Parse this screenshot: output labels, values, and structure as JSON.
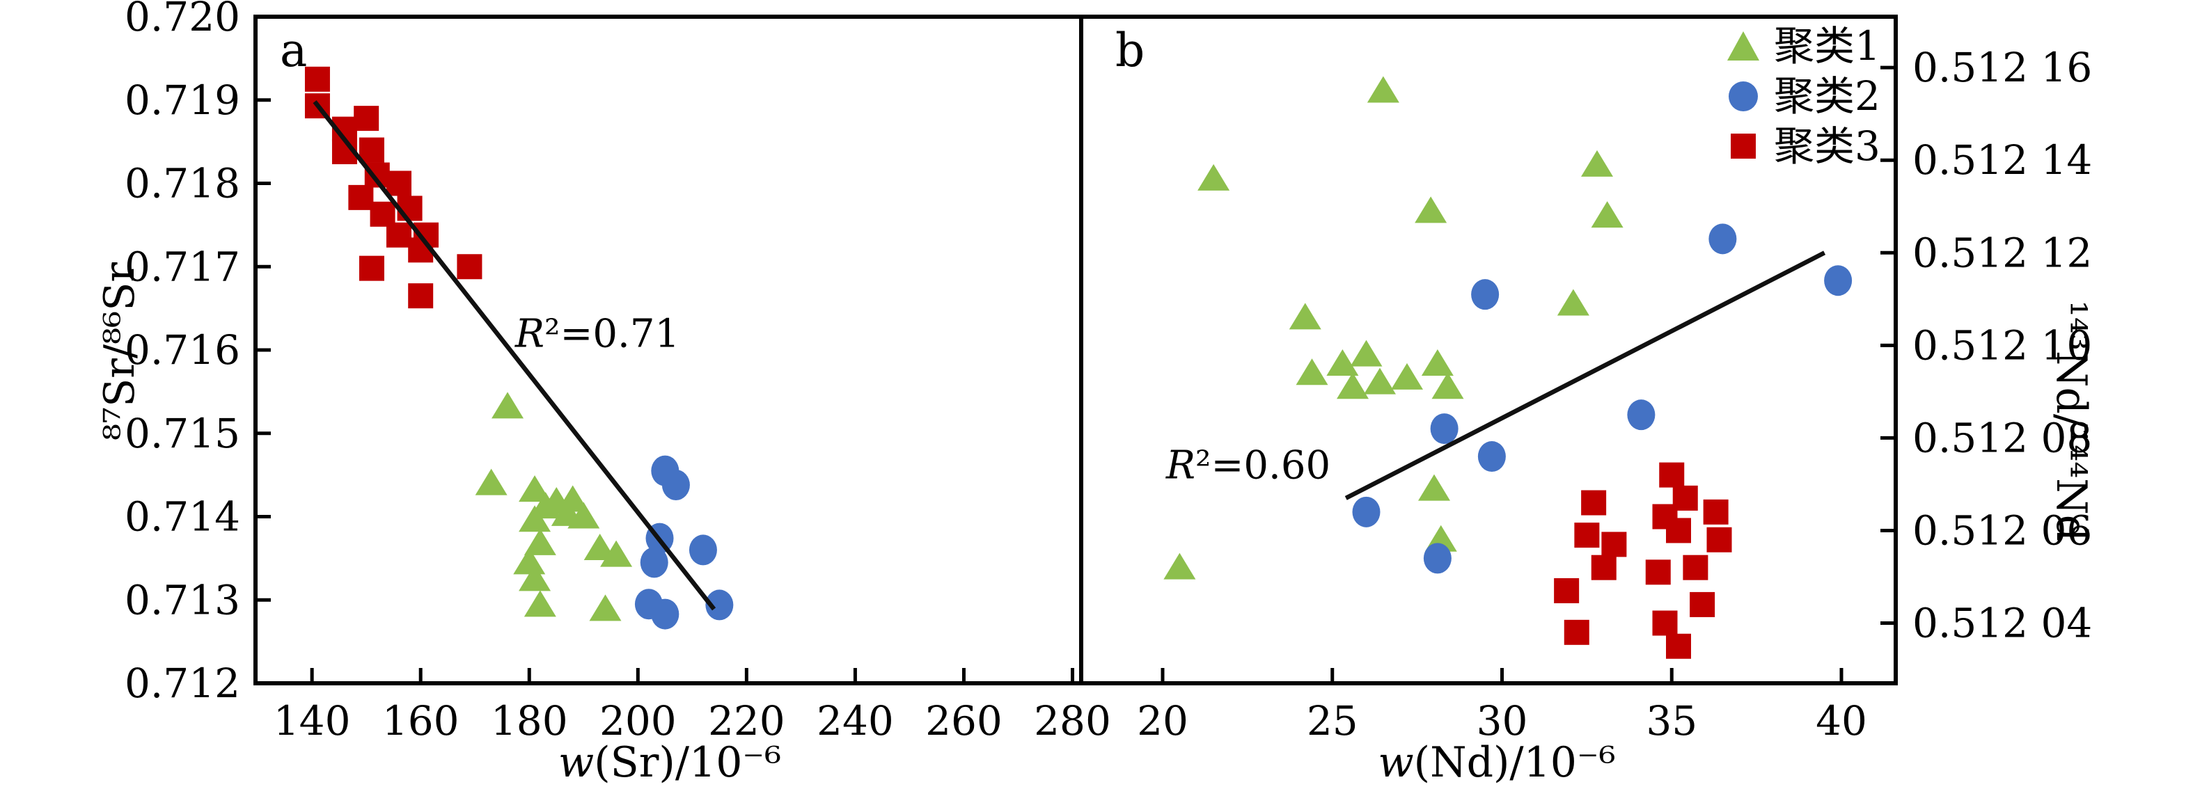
{
  "figure": {
    "background": "#ffffff",
    "panels": [
      {
        "letter": "a",
        "r2_var": "R",
        "r2_rest": "²=0.71",
        "xlabel_var": "w",
        "xlabel_rest": "(Sr)/10⁻⁶",
        "ylabel": "⁸⁷Sr/⁸⁶Sr"
      },
      {
        "letter": "b",
        "r2_var": "R",
        "r2_rest": "²=0.60",
        "xlabel_var": "w",
        "xlabel_rest": "(Nd)/10⁻⁶",
        "ylabel": "¹⁴³Nd/¹⁴⁴Nd"
      }
    ],
    "legend": {
      "items": [
        {
          "label": "聚类1",
          "marker": "triangle",
          "color": "#8DBF4D"
        },
        {
          "label": "聚类2",
          "marker": "circle",
          "color": "#4472C4"
        },
        {
          "label": "聚类3",
          "marker": "square",
          "color": "#C00000"
        }
      ]
    },
    "colors": {
      "axis": "#000000",
      "line": "#111111"
    }
  },
  "chart_data": [
    {
      "type": "scatter",
      "panel": "a",
      "xlabel": "w(Sr)/10⁻⁶",
      "ylabel": "⁸⁷Sr/⁸⁶Sr",
      "xlim": [
        129.6,
        281.6
      ],
      "ylim": [
        0.712,
        0.72
      ],
      "xticks": [
        140,
        160,
        180,
        200,
        220,
        240,
        260,
        280
      ],
      "yticks": [
        0.712,
        0.713,
        0.714,
        0.715,
        0.716,
        0.717,
        0.718,
        0.719,
        0.72
      ],
      "ytick_labels": [
        "0.712",
        "0.713",
        "0.714",
        "0.715",
        "0.716",
        "0.717",
        "0.718",
        "0.719",
        "0.720"
      ],
      "grid": false,
      "series": [
        {
          "name": "聚类1",
          "marker": "triangle",
          "color": "#8DBF4D",
          "points": [
            [
              176,
              0.71532
            ],
            [
              173,
              0.7144
            ],
            [
              181,
              0.71432
            ],
            [
              183,
              0.71412
            ],
            [
              185,
              0.71418
            ],
            [
              187,
              0.71403
            ],
            [
              181,
              0.71396
            ],
            [
              188,
              0.7142
            ],
            [
              190,
              0.714
            ],
            [
              182,
              0.71368
            ],
            [
              180,
              0.71345
            ],
            [
              181,
              0.71325
            ],
            [
              182,
              0.71294
            ],
            [
              193,
              0.71362
            ],
            [
              196,
              0.71354
            ],
            [
              194,
              0.71289
            ]
          ]
        },
        {
          "name": "聚类2",
          "marker": "circle",
          "color": "#4472C4",
          "points": [
            [
              205,
              0.71455
            ],
            [
              207,
              0.71438
            ],
            [
              204,
              0.71374
            ],
            [
              203,
              0.71345
            ],
            [
              212,
              0.7136
            ],
            [
              202,
              0.71295
            ],
            [
              205,
              0.71283
            ],
            [
              215,
              0.71294
            ]
          ]
        },
        {
          "name": "聚类3",
          "marker": "square",
          "color": "#C00000",
          "points": [
            [
              141,
              0.71925
            ],
            [
              141,
              0.71893
            ],
            [
              150,
              0.71878
            ],
            [
              146,
              0.71865
            ],
            [
              151,
              0.7184
            ],
            [
              146,
              0.71838
            ],
            [
              152,
              0.7181
            ],
            [
              156,
              0.718
            ],
            [
              149,
              0.71783
            ],
            [
              158,
              0.7177
            ],
            [
              153,
              0.71763
            ],
            [
              156,
              0.71738
            ],
            [
              161,
              0.71738
            ],
            [
              160,
              0.7172
            ],
            [
              151,
              0.71698
            ],
            [
              169,
              0.717
            ],
            [
              160,
              0.71665
            ]
          ]
        }
      ],
      "regression": {
        "x1": 140.5,
        "y1": 0.71898,
        "x2": 214,
        "y2": 0.71289,
        "r2": 0.71,
        "label": "R²=0.71",
        "label_x": 192,
        "label_y": 0.7162
      }
    },
    {
      "type": "scatter",
      "panel": "b",
      "xlabel": "w(Nd)/10⁻⁶",
      "ylabel": "¹⁴³Nd/¹⁴⁴Nd",
      "xlim": [
        17.6,
        41.6
      ],
      "ylim": [
        0.512027,
        0.512171
      ],
      "xticks": [
        20,
        25,
        30,
        35,
        40
      ],
      "yticks": [
        0.51204,
        0.51206,
        0.51208,
        0.5121,
        0.51212,
        0.51214,
        0.51216
      ],
      "ytick_labels": [
        "0.512 04",
        "0.512 06",
        "0.512 08",
        "0.512 10",
        "0.512 12",
        "0.512 14",
        "0.512 16"
      ],
      "grid": false,
      "series": [
        {
          "name": "聚类1",
          "marker": "triangle",
          "color": "#8DBF4D",
          "points": [
            [
              21.5,
              0.512136
            ],
            [
              26.5,
              0.512155
            ],
            [
              24.2,
              0.512106
            ],
            [
              27.9,
              0.512129
            ],
            [
              32.8,
              0.512139
            ],
            [
              33.1,
              0.512128
            ],
            [
              24.4,
              0.512094
            ],
            [
              25.3,
              0.512096
            ],
            [
              25.6,
              0.512091
            ],
            [
              26.0,
              0.512098
            ],
            [
              26.4,
              0.512092
            ],
            [
              27.2,
              0.512093
            ],
            [
              28.1,
              0.512096
            ],
            [
              28.4,
              0.512091
            ],
            [
              32.1,
              0.512109
            ],
            [
              28.0,
              0.512069
            ],
            [
              28.2,
              0.512058
            ],
            [
              20.5,
              0.512052
            ]
          ]
        },
        {
          "name": "聚类2",
          "marker": "circle",
          "color": "#4472C4",
          "points": [
            [
              29.5,
              0.512111
            ],
            [
              28.3,
              0.512082
            ],
            [
              29.7,
              0.512076
            ],
            [
              26.0,
              0.512064
            ],
            [
              28.1,
              0.512054
            ],
            [
              34.1,
              0.512085
            ],
            [
              36.5,
              0.512123
            ],
            [
              39.9,
              0.512114
            ]
          ]
        },
        {
          "name": "聚类3",
          "marker": "square",
          "color": "#C00000",
          "points": [
            [
              32.7,
              0.512066
            ],
            [
              32.5,
              0.512059
            ],
            [
              33.3,
              0.512057
            ],
            [
              33.0,
              0.512052
            ],
            [
              31.9,
              0.512047
            ],
            [
              32.2,
              0.512038
            ],
            [
              35.0,
              0.512072
            ],
            [
              35.4,
              0.512067
            ],
            [
              34.8,
              0.512063
            ],
            [
              35.2,
              0.51206
            ],
            [
              36.3,
              0.512064
            ],
            [
              36.4,
              0.512058
            ],
            [
              35.7,
              0.512052
            ],
            [
              34.6,
              0.512051
            ],
            [
              35.9,
              0.512044
            ],
            [
              34.8,
              0.51204
            ],
            [
              35.2,
              0.512035
            ]
          ]
        }
      ],
      "regression": {
        "x1": 25.4,
        "y1": 0.512067,
        "x2": 39.5,
        "y2": 0.51212,
        "r2": 0.6,
        "label": "R²=0.60",
        "label_x": 22.5,
        "label_y": 0.512074
      }
    }
  ]
}
